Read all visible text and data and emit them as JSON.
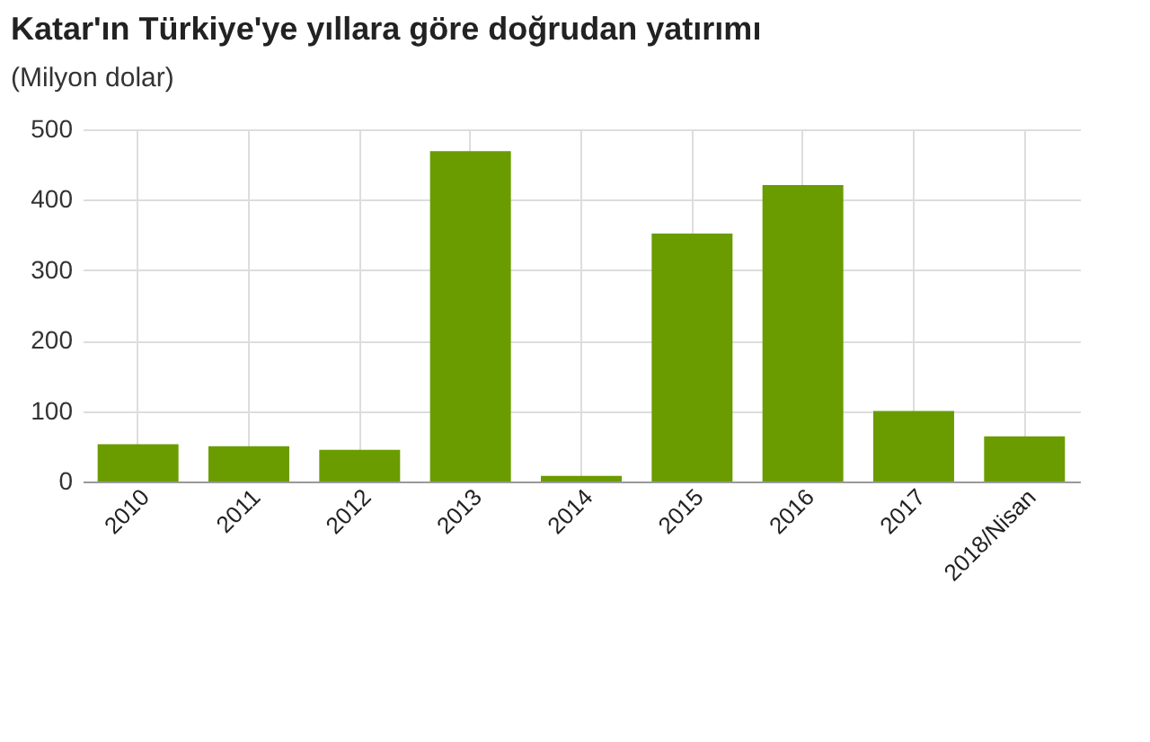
{
  "chart_data": {
    "type": "bar",
    "title": "Katar'ın Türkiye'ye yıllara göre doğrudan yatırımı",
    "subtitle": "(Milyon dolar)",
    "categories": [
      "2010",
      "2011",
      "2012",
      "2013",
      "2014",
      "2015",
      "2016",
      "2017",
      "2018/Nisan"
    ],
    "values": [
      53,
      50,
      45,
      469,
      8,
      352,
      421,
      100,
      64
    ],
    "color": "#6a9c00",
    "ylim": [
      0,
      500
    ],
    "yticks": [
      0,
      100,
      200,
      300,
      400,
      500
    ],
    "grid": true
  }
}
